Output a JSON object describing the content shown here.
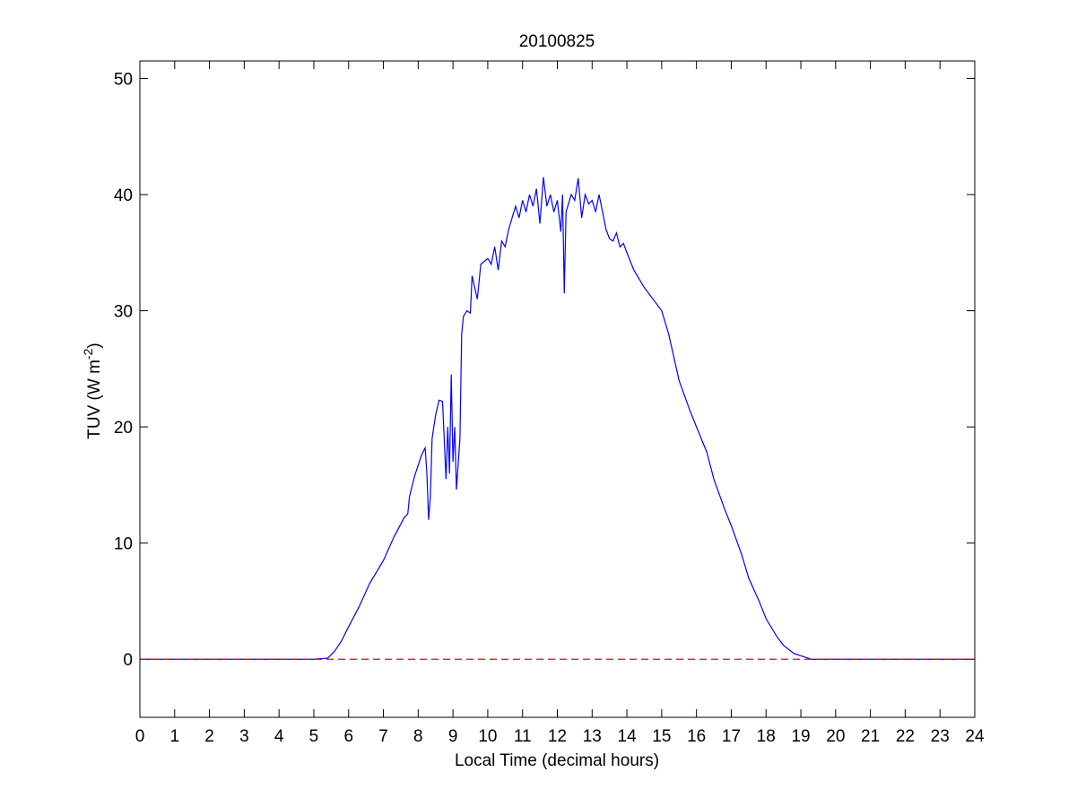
{
  "chart_data": {
    "type": "line",
    "title": "20100825",
    "xlabel": "Local Time (decimal hours)",
    "ylabel_parts": [
      "TUV (W m",
      "-2",
      ")"
    ],
    "xlim": [
      0,
      24
    ],
    "xticks": [
      0,
      1,
      2,
      3,
      4,
      5,
      6,
      7,
      8,
      9,
      10,
      11,
      12,
      13,
      14,
      15,
      16,
      17,
      18,
      19,
      20,
      21,
      22,
      23,
      24
    ],
    "ylim": [
      -5,
      51.5
    ],
    "yticks": [
      0,
      10,
      20,
      30,
      40,
      50
    ],
    "grid": false,
    "series": [
      {
        "color": "#0000ff",
        "style": "solid",
        "x": [
          0,
          5,
          5.4,
          5.6,
          5.8,
          6,
          6.3,
          6.6,
          7,
          7.3,
          7.6,
          7.7,
          7.75,
          7.9,
          8.1,
          8.2,
          8.25,
          8.3,
          8.35,
          8.4,
          8.5,
          8.6,
          8.7,
          8.8,
          8.85,
          8.9,
          8.95,
          9,
          9.05,
          9.1,
          9.2,
          9.25,
          9.3,
          9.4,
          9.5,
          9.55,
          9.7,
          9.8,
          10,
          10.1,
          10.2,
          10.3,
          10.4,
          10.5,
          10.6,
          10.7,
          10.8,
          10.9,
          11,
          11.1,
          11.2,
          11.3,
          11.4,
          11.5,
          11.6,
          11.7,
          11.8,
          11.9,
          12,
          12.1,
          12.15,
          12.2,
          12.25,
          12.4,
          12.5,
          12.6,
          12.7,
          12.8,
          12.9,
          13,
          13.1,
          13.2,
          13.3,
          13.4,
          13.5,
          13.6,
          13.7,
          13.8,
          13.9,
          14,
          14.2,
          14.5,
          14.8,
          15,
          15.2,
          15.5,
          15.8,
          16,
          16.3,
          16.5,
          16.8,
          17,
          17.3,
          17.5,
          17.8,
          18,
          18.3,
          18.5,
          18.8,
          19,
          19.3,
          24
        ],
        "values": [
          0,
          0,
          0.1,
          0.7,
          1.6,
          2.8,
          4.5,
          6.5,
          8.5,
          10.5,
          12.2,
          12.5,
          14,
          15.8,
          17.6,
          18.2,
          16,
          12,
          14,
          19,
          21,
          22.3,
          22.2,
          15.5,
          20,
          16,
          24.5,
          17,
          20,
          14.6,
          19,
          28,
          29.5,
          30,
          29.8,
          33,
          31,
          34,
          34.5,
          34,
          35.5,
          33.5,
          36,
          35.5,
          37,
          38,
          39,
          38,
          39.5,
          38.5,
          40,
          39,
          40.5,
          37.5,
          41.5,
          39,
          40,
          38.5,
          39.5,
          36.8,
          40,
          31.5,
          38.5,
          40,
          39.5,
          41.4,
          38,
          40,
          39.2,
          39.5,
          38.5,
          40,
          38.5,
          37,
          36.2,
          36,
          36.7,
          35.5,
          35.8,
          35,
          33.5,
          32,
          30.8,
          30,
          28,
          24,
          21.5,
          20,
          17.8,
          15.5,
          13,
          11.5,
          9,
          7,
          5,
          3.5,
          2,
          1.2,
          0.5,
          0.3,
          0,
          0
        ]
      },
      {
        "color": "#ff0000",
        "style": "dashed",
        "x": [
          0,
          24
        ],
        "values": [
          0,
          0
        ]
      }
    ]
  }
}
